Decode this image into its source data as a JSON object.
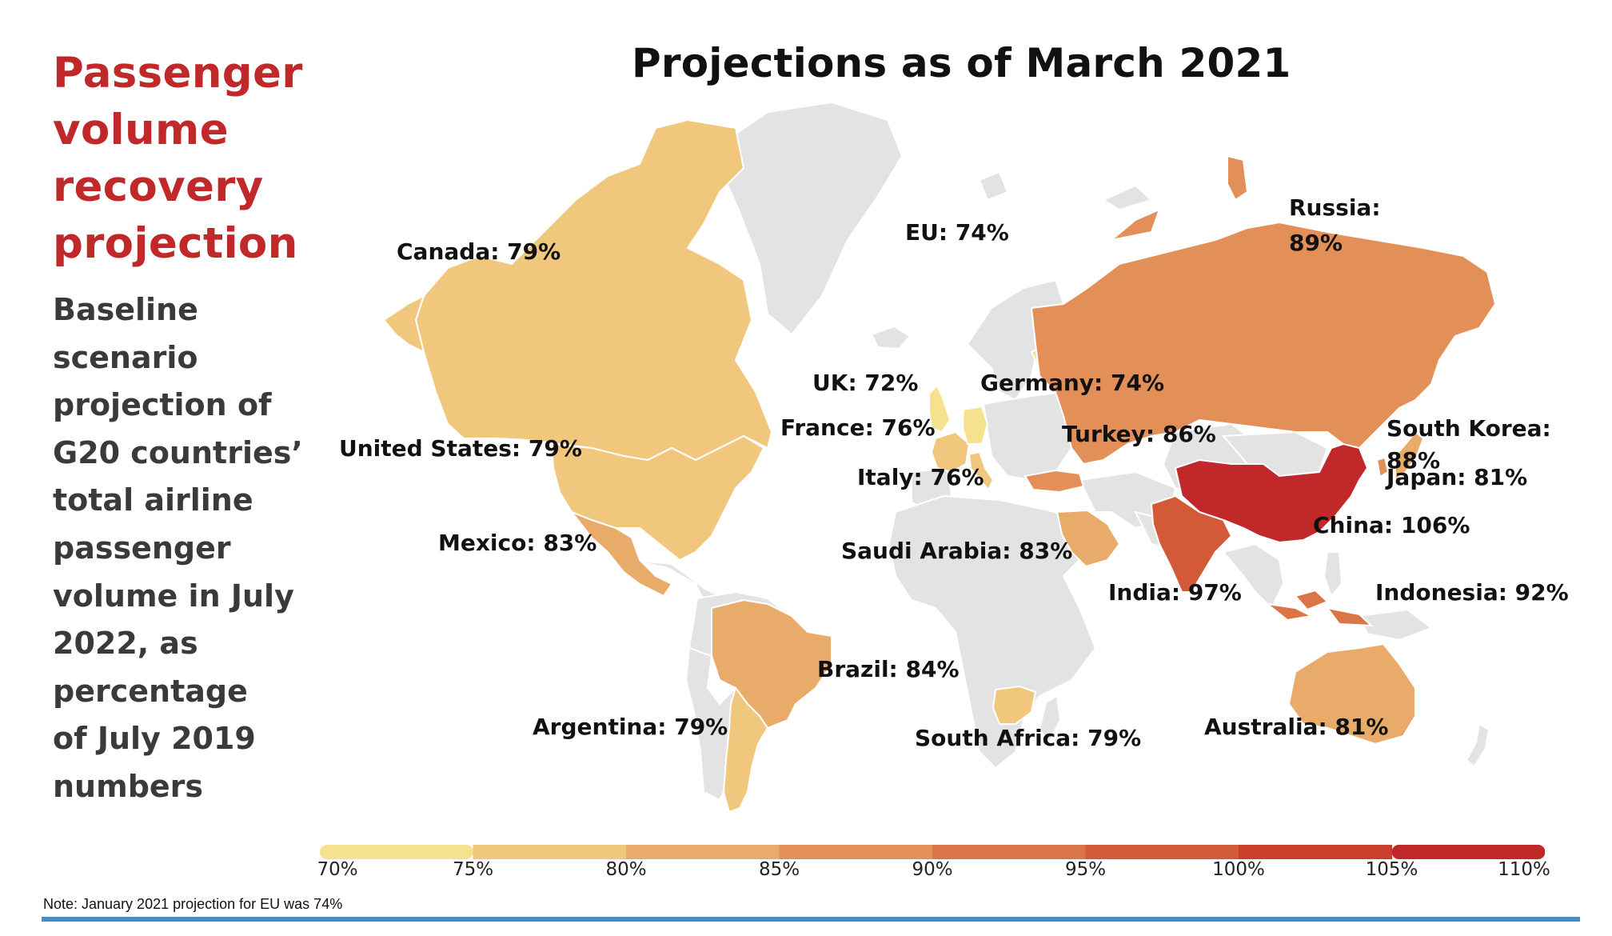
{
  "sidebar": {
    "title_lines": [
      "Passenger",
      "volume",
      "recovery",
      "projection"
    ],
    "description_lines": [
      "Baseline",
      "scenario",
      "projection of",
      "G20 countries’",
      "total airline",
      "passenger",
      "volume in July",
      "2022, as",
      "percentage",
      "of July 2019",
      "numbers"
    ]
  },
  "map_title": "Projections as of March 2021",
  "colors": {
    "land": "#e3e3e3",
    "land_stroke": "#ffffff",
    "scale": [
      "#f6e28e",
      "#f0c77c",
      "#e9ab6a",
      "#e39058",
      "#db7447",
      "#d25a38",
      "#c93f2c",
      "#c0282a"
    ],
    "rule": "#4a8cc2"
  },
  "countries": [
    {
      "id": "canada",
      "name": "Canada",
      "value_label": "79%",
      "value": 79
    },
    {
      "id": "us",
      "name": "United States",
      "value_label": "79%",
      "value": 79
    },
    {
      "id": "mexico",
      "name": "Mexico",
      "value_label": "83%",
      "value": 83
    },
    {
      "id": "brazil",
      "name": "Brazil",
      "value_label": "84%",
      "value": 84
    },
    {
      "id": "argentina",
      "name": "Argentina",
      "value_label": "79%",
      "value": 79
    },
    {
      "id": "eu",
      "name": "EU",
      "value_label": "74%",
      "value": 74
    },
    {
      "id": "uk",
      "name": "UK",
      "value_label": "72%",
      "value": 72
    },
    {
      "id": "france",
      "name": "France",
      "value_label": "76%",
      "value": 76
    },
    {
      "id": "italy",
      "name": "Italy",
      "value_label": "76%",
      "value": 76
    },
    {
      "id": "germany",
      "name": "Germany",
      "value_label": "74%",
      "value": 74
    },
    {
      "id": "turkey",
      "name": "Turkey",
      "value_label": "86%",
      "value": 86
    },
    {
      "id": "russia",
      "name": "Russia",
      "value_label": "89%",
      "value": 89
    },
    {
      "id": "saudi",
      "name": "Saudi Arabia",
      "value_label": "83%",
      "value": 83
    },
    {
      "id": "southafrica",
      "name": "South Africa",
      "value_label": "79%",
      "value": 79
    },
    {
      "id": "india",
      "name": "India",
      "value_label": "97%",
      "value": 97
    },
    {
      "id": "china",
      "name": "China",
      "value_label": "106%",
      "value": 106
    },
    {
      "id": "southkorea",
      "name": "South Korea",
      "value_label": "88%",
      "value": 88
    },
    {
      "id": "japan",
      "name": "Japan",
      "value_label": "81%",
      "value": 81
    },
    {
      "id": "indonesia",
      "name": "Indonesia",
      "value_label": "92%",
      "value": 92
    },
    {
      "id": "australia",
      "name": "Australia",
      "value_label": "81%",
      "value": 81
    }
  ],
  "legend": {
    "ticks": [
      "70%",
      "75%",
      "80%",
      "85%",
      "90%",
      "95%",
      "100%",
      "105%",
      "110%"
    ],
    "min": 70,
    "max": 110
  },
  "note": "Note: January 2021 projection for EU was 74%"
}
